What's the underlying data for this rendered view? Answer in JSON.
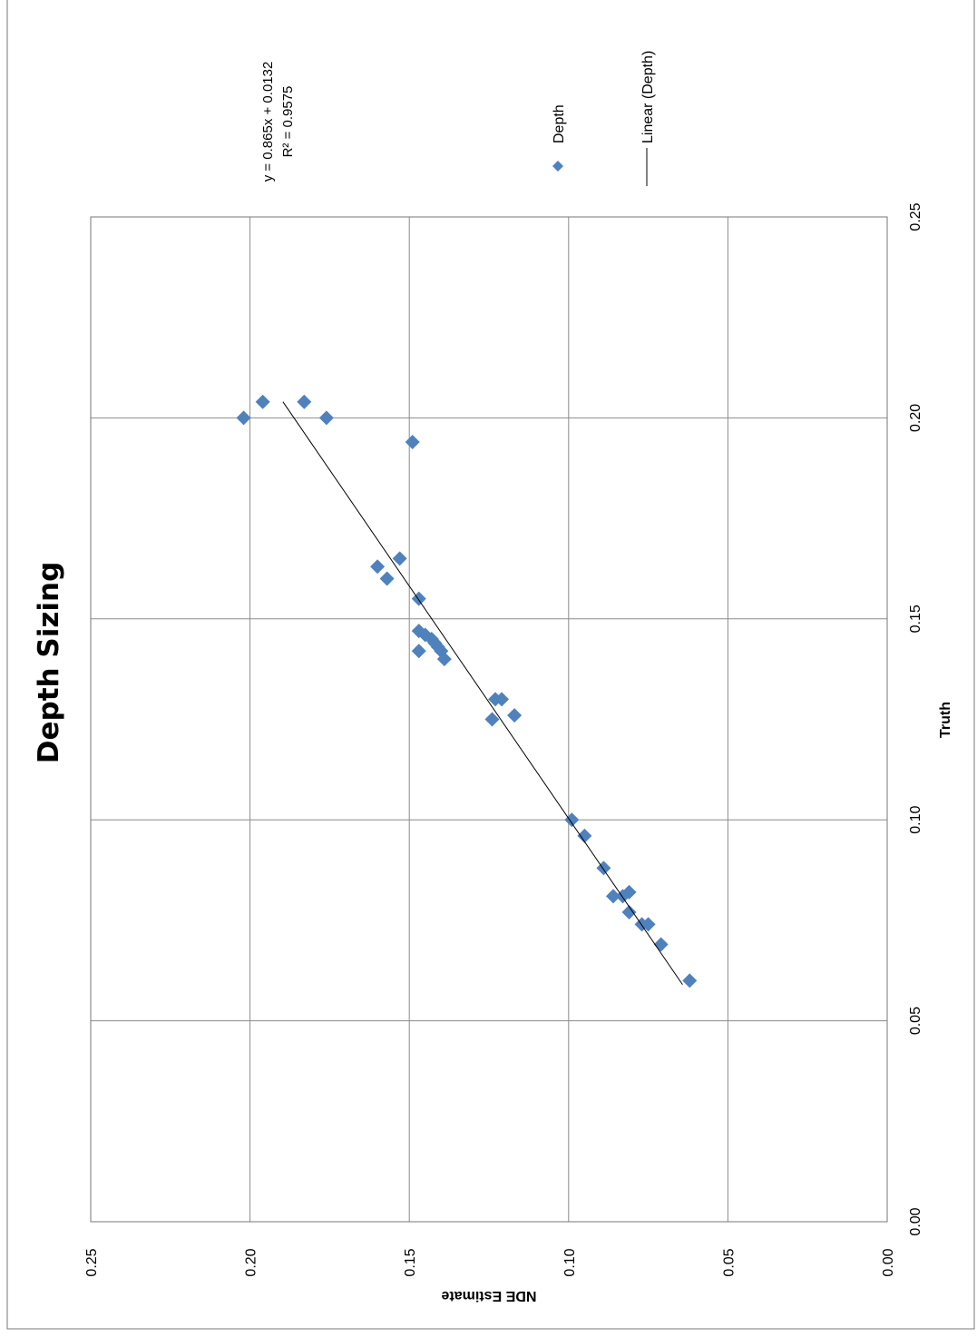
{
  "chart_data": {
    "type": "scatter",
    "title": "Depth Sizing",
    "xlabel": "Truth",
    "ylabel": "NDE Estimate",
    "xlim": [
      0,
      0.25
    ],
    "ylim": [
      0,
      0.25
    ],
    "x_ticks": [
      "0.00",
      "0.05",
      "0.10",
      "0.15",
      "0.20",
      "0.25"
    ],
    "y_ticks": [
      "0.00",
      "0.05",
      "0.10",
      "0.15",
      "0.20",
      "0.25"
    ],
    "grid": true,
    "legend_position": "right",
    "rotation": "page rotated 90 degrees counter-clockwise",
    "series": [
      {
        "name": "Depth",
        "marker": "diamond",
        "color": "#4F81BD",
        "points": [
          [
            0.06,
            0.062
          ],
          [
            0.069,
            0.071
          ],
          [
            0.074,
            0.075
          ],
          [
            0.074,
            0.077
          ],
          [
            0.077,
            0.081
          ],
          [
            0.082,
            0.081
          ],
          [
            0.081,
            0.083
          ],
          [
            0.081,
            0.086
          ],
          [
            0.088,
            0.089
          ],
          [
            0.096,
            0.095
          ],
          [
            0.1,
            0.099
          ],
          [
            0.126,
            0.117
          ],
          [
            0.125,
            0.124
          ],
          [
            0.13,
            0.121
          ],
          [
            0.13,
            0.123
          ],
          [
            0.14,
            0.139
          ],
          [
            0.142,
            0.14
          ],
          [
            0.142,
            0.147
          ],
          [
            0.143,
            0.141
          ],
          [
            0.144,
            0.142
          ],
          [
            0.145,
            0.143
          ],
          [
            0.146,
            0.145
          ],
          [
            0.147,
            0.147
          ],
          [
            0.155,
            0.147
          ],
          [
            0.16,
            0.157
          ],
          [
            0.163,
            0.16
          ],
          [
            0.165,
            0.153
          ],
          [
            0.194,
            0.149
          ],
          [
            0.2,
            0.176
          ],
          [
            0.2,
            0.202
          ],
          [
            0.204,
            0.183
          ],
          [
            0.204,
            0.196
          ]
        ]
      }
    ],
    "trendline": {
      "name": "Linear (Depth)",
      "slope": 0.865,
      "intercept": 0.0132,
      "x_range": [
        0.059,
        0.204
      ],
      "equation": "y = 0.865x + 0.0132",
      "r_squared": "R² = 0.9575"
    }
  }
}
